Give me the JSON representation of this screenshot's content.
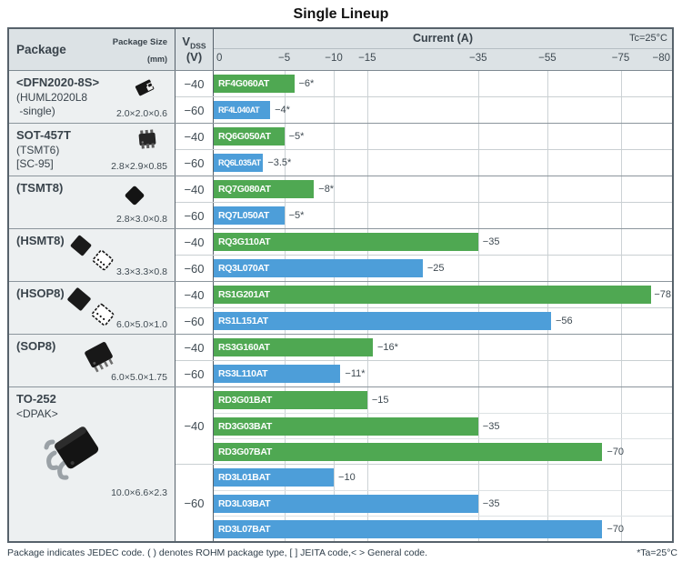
{
  "title": "Single Lineup",
  "header": {
    "package_label": "Package",
    "package_size_label": "Package Size",
    "package_size_unit": "(mm)",
    "vdss_main": "V",
    "vdss_sub": "DSS",
    "vdss_unit": "(V)",
    "current_label": "Current (A)",
    "condition_label": "Tc=25°C"
  },
  "footer": {
    "note": "Package indicates JEDEC code. ( ) denotes ROHM package type, [ ] JEITA code,< > General code.",
    "condition": "*Ta=25°C"
  },
  "colors": {
    "green": "#4fa852",
    "blue": "#4d9ed9",
    "header_bg": "#dce2e5",
    "package_cell_bg": "#edf0f1"
  },
  "chart_data": {
    "type": "bar",
    "orientation": "horizontal",
    "title": "Single Lineup",
    "xlabel": "Current (A)",
    "condition": "Tc=25°C",
    "x_ticks": [
      "0",
      "−5",
      "−10",
      "−15",
      "−35",
      "−55",
      "−75",
      "−80"
    ],
    "x_tick_values": [
      0,
      5,
      10,
      15,
      35,
      55,
      75,
      80
    ],
    "x_scale_stops_pct": [
      [
        0,
        0
      ],
      [
        5,
        15.4
      ],
      [
        10,
        26.2
      ],
      [
        15,
        33.5
      ],
      [
        35,
        57.7
      ],
      [
        55,
        72.8
      ],
      [
        75,
        88.8
      ],
      [
        80,
        100
      ]
    ],
    "gridline_values": [
      5,
      10,
      15,
      35,
      55,
      75
    ],
    "groups": [
      {
        "name_lines": [
          {
            "text": "<DFN2020-8S>",
            "bold": true
          },
          {
            "text": "(HUML2020L8",
            "bold": false
          },
          {
            "text": " -single)",
            "bold": false
          }
        ],
        "size": "2.0×2.0×0.6",
        "icon": "dfn-package-icon",
        "sections": [
          {
            "vdss": "−40",
            "color": "green",
            "rows": [
              {
                "part": "RF4G060AT",
                "value": 6,
                "label": "−6*"
              }
            ]
          },
          {
            "vdss": "−60",
            "color": "blue",
            "rows": [
              {
                "part": "RF4L040AT",
                "value": 4,
                "label": "−4*"
              }
            ]
          }
        ]
      },
      {
        "name_lines": [
          {
            "text": "SOT-457T",
            "bold": true
          },
          {
            "text": "(TSMT6)",
            "bold": false
          },
          {
            "text": "[SC-95]",
            "bold": false
          }
        ],
        "size": "2.8×2.9×0.85",
        "icon": "sot457t-package-icon",
        "sections": [
          {
            "vdss": "−40",
            "color": "green",
            "rows": [
              {
                "part": "RQ6G050AT",
                "value": 5,
                "label": "−5*"
              }
            ]
          },
          {
            "vdss": "−60",
            "color": "blue",
            "rows": [
              {
                "part": "RQ6L035AT",
                "value": 3.5,
                "label": "−3.5*"
              }
            ]
          }
        ]
      },
      {
        "name_lines": [
          {
            "text": "(TSMT8)",
            "bold": true
          }
        ],
        "size": "2.8×3.0×0.8",
        "icon": "tsmt8-package-icon",
        "sections": [
          {
            "vdss": "−40",
            "color": "green",
            "rows": [
              {
                "part": "RQ7G080AT",
                "value": 8,
                "label": "−8*"
              }
            ]
          },
          {
            "vdss": "−60",
            "color": "blue",
            "rows": [
              {
                "part": "RQ7L050AT",
                "value": 5,
                "label": "−5*"
              }
            ]
          }
        ]
      },
      {
        "name_lines": [
          {
            "text": "(HSMT8)",
            "bold": true
          }
        ],
        "size": "3.3×3.3×0.8",
        "icon": "hsmt8-package-icon",
        "sections": [
          {
            "vdss": "−40",
            "color": "green",
            "rows": [
              {
                "part": "RQ3G110AT",
                "value": 35,
                "label": "−35"
              }
            ]
          },
          {
            "vdss": "−60",
            "color": "blue",
            "rows": [
              {
                "part": "RQ3L070AT",
                "value": 25,
                "label": "−25"
              }
            ]
          }
        ]
      },
      {
        "name_lines": [
          {
            "text": "(HSOP8)",
            "bold": true
          }
        ],
        "size": "6.0×5.0×1.0",
        "icon": "hsop8-package-icon",
        "sections": [
          {
            "vdss": "−40",
            "color": "green",
            "rows": [
              {
                "part": "RS1G201AT",
                "value": 78,
                "label": "−78"
              }
            ]
          },
          {
            "vdss": "−60",
            "color": "blue",
            "rows": [
              {
                "part": "RS1L151AT",
                "value": 56,
                "label": "−56"
              }
            ]
          }
        ]
      },
      {
        "name_lines": [
          {
            "text": "(SOP8)",
            "bold": true
          }
        ],
        "size": "6.0×5.0×1.75",
        "icon": "sop8-package-icon",
        "sections": [
          {
            "vdss": "−40",
            "color": "green",
            "rows": [
              {
                "part": "RS3G160AT",
                "value": 16,
                "label": "−16*"
              }
            ]
          },
          {
            "vdss": "−60",
            "color": "blue",
            "rows": [
              {
                "part": "RS3L110AT",
                "value": 11,
                "label": "−11*"
              }
            ]
          }
        ]
      },
      {
        "name_lines": [
          {
            "text": "TO-252",
            "bold": true
          },
          {
            "text": "<DPAK>",
            "bold": false
          }
        ],
        "size": "10.0×6.6×2.3",
        "icon": "to252-package-icon",
        "sections": [
          {
            "vdss": "−40",
            "color": "green",
            "rows": [
              {
                "part": "RD3G01BAT",
                "value": 15,
                "label": "−15"
              },
              {
                "part": "RD3G03BAT",
                "value": 35,
                "label": "−35"
              },
              {
                "part": "RD3G07BAT",
                "value": 70,
                "label": "−70"
              }
            ]
          },
          {
            "vdss": "−60",
            "color": "blue",
            "rows": [
              {
                "part": "RD3L01BAT",
                "value": 10,
                "label": "−10"
              },
              {
                "part": "RD3L03BAT",
                "value": 35,
                "label": "−35"
              },
              {
                "part": "RD3L07BAT",
                "value": 70,
                "label": "−70"
              }
            ]
          }
        ]
      }
    ]
  }
}
